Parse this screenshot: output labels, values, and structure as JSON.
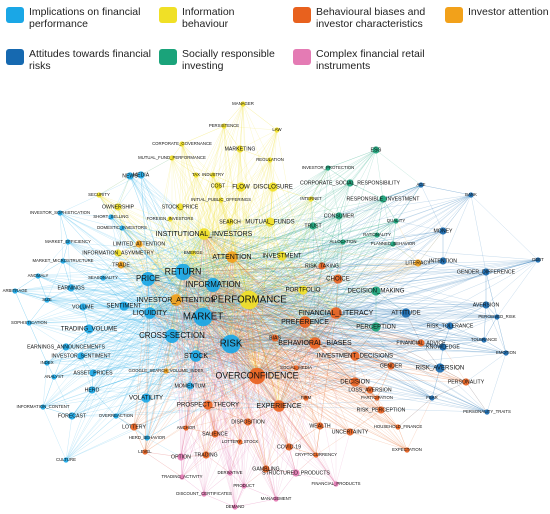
{
  "legend": [
    {
      "label": "Implications on financial performance",
      "color": "#1aa7e6"
    },
    {
      "label": "Information behaviour",
      "color": "#f0e026"
    },
    {
      "label": "Behavioural biases and investor characteristics",
      "color": "#e8611e"
    },
    {
      "label": "Investor attention",
      "color": "#f2a11a"
    },
    {
      "label": "Attitudes towards financial risks",
      "color": "#1669b0"
    },
    {
      "label": "Socially responsible investing",
      "color": "#1aa37a"
    },
    {
      "label": "Complex financial retail instruments",
      "color": "#e47bb4"
    }
  ],
  "nodes": [
    {
      "id": "MANAGER",
      "c": 1,
      "w": 1
    },
    {
      "id": "PERSISTENCE",
      "c": 1,
      "w": 1
    },
    {
      "id": "LAW",
      "c": 1,
      "w": 1
    },
    {
      "id": "CORPORATE_GOVERNANCE",
      "c": 1,
      "w": 1
    },
    {
      "id": "MARKETING",
      "c": 1,
      "w": 2
    },
    {
      "id": "ESG",
      "c": 5,
      "w": 2
    },
    {
      "id": "MUTUAL_FUND_PERFORMANCE",
      "c": 1,
      "w": 1
    },
    {
      "id": "REGULATION",
      "c": 1,
      "w": 1
    },
    {
      "id": "MEDIA",
      "c": 0,
      "w": 2
    },
    {
      "id": "TAX",
      "c": 1,
      "w": 1
    },
    {
      "id": "INDUSTRY",
      "c": 1,
      "w": 1
    },
    {
      "id": "INVESTOR_PROTECTION",
      "c": 5,
      "w": 1
    },
    {
      "id": "NEWS",
      "c": 0,
      "w": 2
    },
    {
      "id": "COST",
      "c": 1,
      "w": 2
    },
    {
      "id": "FLOW",
      "c": 1,
      "w": 3
    },
    {
      "id": "DISCLOSURE",
      "c": 1,
      "w": 3
    },
    {
      "id": "CORPORATE_SOCIAL_RESPONSIBILITY",
      "c": 5,
      "w": 2
    },
    {
      "id": "AGE",
      "c": 4,
      "w": 1
    },
    {
      "id": "BANK",
      "c": 4,
      "w": 1
    },
    {
      "id": "SECURITY",
      "c": 1,
      "w": 1
    },
    {
      "id": "INITIAL_PUBLIC_OFFERINGS",
      "c": 1,
      "w": 1
    },
    {
      "id": "INTERNET",
      "c": 1,
      "w": 1
    },
    {
      "id": "RESPONSIBLE_INVESTMENT",
      "c": 5,
      "w": 2
    },
    {
      "id": "OWNERSHIP",
      "c": 1,
      "w": 2
    },
    {
      "id": "STOCK_PRICE",
      "c": 1,
      "w": 2
    },
    {
      "id": "INVESTOR_SOPHISTICATION",
      "c": 0,
      "w": 1
    },
    {
      "id": "SHORT_SELLING",
      "c": 0,
      "w": 1
    },
    {
      "id": "FOREIGN_INVESTORS",
      "c": 1,
      "w": 1
    },
    {
      "id": "CONSUMER",
      "c": 5,
      "w": 2
    },
    {
      "id": "QUALITY",
      "c": 5,
      "w": 1
    },
    {
      "id": "DOMESTIC_INVESTORS",
      "c": 0,
      "w": 1
    },
    {
      "id": "SEARCH",
      "c": 1,
      "w": 2
    },
    {
      "id": "MUTUAL_FUNDS",
      "c": 1,
      "w": 3
    },
    {
      "id": "TRUST",
      "c": 5,
      "w": 2
    },
    {
      "id": "MONEY",
      "c": 4,
      "w": 2
    },
    {
      "id": "INSTITUTIONAL_INVESTORS",
      "c": 1,
      "w": 4
    },
    {
      "id": "RATIONALITY",
      "c": 5,
      "w": 1
    },
    {
      "id": "MARKET_EFFICIENCY",
      "c": 0,
      "w": 1
    },
    {
      "id": "ALLOCATION",
      "c": 5,
      "w": 1
    },
    {
      "id": "PLANNED_BEHAVIOR",
      "c": 5,
      "w": 1
    },
    {
      "id": "LIMITED_ATTENTION",
      "c": 3,
      "w": 2
    },
    {
      "id": "INFORMATION_ASYMMETRY",
      "c": 1,
      "w": 2
    },
    {
      "id": "EMERGE",
      "c": 1,
      "w": 1
    },
    {
      "id": "ATTENTION",
      "c": 3,
      "w": 4
    },
    {
      "id": "INVESTMENT",
      "c": 1,
      "w": 3
    },
    {
      "id": "INTENTION",
      "c": 4,
      "w": 2
    },
    {
      "id": "DEBT",
      "c": 4,
      "w": 1
    },
    {
      "id": "MARKET_MICROSTRUCTURE",
      "c": 0,
      "w": 1
    },
    {
      "id": "TRADE",
      "c": 3,
      "w": 2
    },
    {
      "id": "LITERACY",
      "c": 3,
      "w": 2
    },
    {
      "id": "GENDER_DIFFERENCE",
      "c": 4,
      "w": 2
    },
    {
      "id": "RETURN",
      "c": 0,
      "w": 6
    },
    {
      "id": "ANOMALY",
      "c": 0,
      "w": 1
    },
    {
      "id": "SEASONALITY",
      "c": 0,
      "w": 1
    },
    {
      "id": "RISK_TAKING",
      "c": 2,
      "w": 2
    },
    {
      "id": "CHOICE",
      "c": 2,
      "w": 3
    },
    {
      "id": "ARBITRAGE",
      "c": 0,
      "w": 1
    },
    {
      "id": "PRICE",
      "c": 0,
      "w": 5
    },
    {
      "id": "INFORMATION",
      "c": 0,
      "w": 5
    },
    {
      "id": "EARNINGS",
      "c": 0,
      "w": 2
    },
    {
      "id": "DECISION_MAKING",
      "c": 5,
      "w": 3
    },
    {
      "id": "SIZE",
      "c": 0,
      "w": 1
    },
    {
      "id": "AVERSION",
      "c": 4,
      "w": 2
    },
    {
      "id": "PERFORMANCE",
      "c": 1,
      "w": 7
    },
    {
      "id": "PORTFOLIO",
      "c": 1,
      "w": 3
    },
    {
      "id": "INVESTOR_ATTENTION",
      "c": 3,
      "w": 4
    },
    {
      "id": "VOLUME",
      "c": 0,
      "w": 2
    },
    {
      "id": "SENTIMENT",
      "c": 0,
      "w": 3
    },
    {
      "id": "LIQUIDITY",
      "c": 0,
      "w": 4
    },
    {
      "id": "PERCEIVED_RISK",
      "c": 4,
      "w": 1
    },
    {
      "id": "SOPHISTICATION",
      "c": 0,
      "w": 1
    },
    {
      "id": "FINANCIAL_LITERACY",
      "c": 2,
      "w": 4
    },
    {
      "id": "ATTITUDE",
      "c": 4,
      "w": 3
    },
    {
      "id": "MARKET",
      "c": 0,
      "w": 7
    },
    {
      "id": "PREFERENCE",
      "c": 2,
      "w": 4
    },
    {
      "id": "TRADING_VOLUME",
      "c": 0,
      "w": 3
    },
    {
      "id": "PERCEPTION",
      "c": 5,
      "w": 3
    },
    {
      "id": "RISK_TOLERANCE",
      "c": 4,
      "w": 2
    },
    {
      "id": "CROSS-SECTION",
      "c": 0,
      "w": 5
    },
    {
      "id": "BIAS",
      "c": 2,
      "w": 2
    },
    {
      "id": "EARNINGS_ANNOUNCEMENTS",
      "c": 0,
      "w": 2
    },
    {
      "id": "KNOWLEDGE",
      "c": 4,
      "w": 2
    },
    {
      "id": "FINANCIAL_ADVICE",
      "c": 2,
      "w": 2
    },
    {
      "id": "TOLERANCE",
      "c": 4,
      "w": 1
    },
    {
      "id": "EMOTION",
      "c": 4,
      "w": 1
    },
    {
      "id": "RISK",
      "c": 0,
      "w": 7
    },
    {
      "id": "BEHAVIORAL_BIASES",
      "c": 2,
      "w": 4
    },
    {
      "id": "INVESTOR_SENTIMENT",
      "c": 0,
      "w": 2
    },
    {
      "id": "INVESTMENT_DECISIONS",
      "c": 2,
      "w": 3
    },
    {
      "id": "RISK_AVERSION",
      "c": 4,
      "w": 3
    },
    {
      "id": "GENDER",
      "c": 2,
      "w": 2
    },
    {
      "id": "INDEX",
      "c": 0,
      "w": 1
    },
    {
      "id": "STOCK",
      "c": 0,
      "w": 4
    },
    {
      "id": "ASSET_PRICES",
      "c": 0,
      "w": 2
    },
    {
      "id": "SOCIAL_MEDIA",
      "c": 2,
      "w": 1
    },
    {
      "id": "PERSONALITY",
      "c": 2,
      "w": 2
    },
    {
      "id": "GOOGLE_SEARCH_VOLUME_INDEX",
      "c": 3,
      "w": 1
    },
    {
      "id": "OVERCONFIDENCE",
      "c": 2,
      "w": 6
    },
    {
      "id": "DECISION",
      "c": 2,
      "w": 3
    },
    {
      "id": "ANALYST",
      "c": 0,
      "w": 1
    },
    {
      "id": "LOSS_AVERSION",
      "c": 2,
      "w": 2
    },
    {
      "id": "MOMENTUM",
      "c": 0,
      "w": 2
    },
    {
      "id": "HERD",
      "c": 0,
      "w": 2
    },
    {
      "id": "EXPERIENCE",
      "c": 2,
      "w": 4
    },
    {
      "id": "FEAR",
      "c": 4,
      "w": 1
    },
    {
      "id": "INFORMATION_CONTENT",
      "c": 0,
      "w": 1
    },
    {
      "id": "PROSPECT_THEORY",
      "c": 2,
      "w": 3
    },
    {
      "id": "VOLATILITY",
      "c": 0,
      "w": 3
    },
    {
      "id": "PARTICIPATION",
      "c": 2,
      "w": 1
    },
    {
      "id": "RISK_PERCEPTION",
      "c": 2,
      "w": 2
    },
    {
      "id": "FIRM",
      "c": 2,
      "w": 1
    },
    {
      "id": "PERSONALITY_TRAITS",
      "c": 4,
      "w": 1
    },
    {
      "id": "FORECAST",
      "c": 0,
      "w": 2
    },
    {
      "id": "OVERREACTION",
      "c": 0,
      "w": 1
    },
    {
      "id": "DISPOSITION",
      "c": 2,
      "w": 2
    },
    {
      "id": "HOUSEHOLD_FINANCE",
      "c": 2,
      "w": 1
    },
    {
      "id": "LOTTERY",
      "c": 2,
      "w": 2
    },
    {
      "id": "WEALTH",
      "c": 2,
      "w": 2
    },
    {
      "id": "UNCERTAINTY",
      "c": 2,
      "w": 2
    },
    {
      "id": "HERD_BEHAVIOR",
      "c": 0,
      "w": 1
    },
    {
      "id": "ANCHOR",
      "c": 2,
      "w": 1
    },
    {
      "id": "SALIENCE",
      "c": 2,
      "w": 2
    },
    {
      "id": "EXPECTATION",
      "c": 2,
      "w": 1
    },
    {
      "id": "LOTTERY_STOCK",
      "c": 2,
      "w": 1
    },
    {
      "id": "COVID-19",
      "c": 2,
      "w": 2
    },
    {
      "id": "CULTURE",
      "c": 0,
      "w": 1
    },
    {
      "id": "LEVEL",
      "c": 2,
      "w": 1
    },
    {
      "id": "OPTION",
      "c": 6,
      "w": 2
    },
    {
      "id": "TRADING",
      "c": 2,
      "w": 2
    },
    {
      "id": "CRYPTOCURRENCY",
      "c": 2,
      "w": 1
    },
    {
      "id": "GAMBLING",
      "c": 2,
      "w": 2
    },
    {
      "id": "DERIVATIVE",
      "c": 6,
      "w": 1
    },
    {
      "id": "STRUCTURED_PRODUCTS",
      "c": 6,
      "w": 2
    },
    {
      "id": "TRADING_ACTIVITY",
      "c": 6,
      "w": 1
    },
    {
      "id": "PRODUCT",
      "c": 6,
      "w": 1
    },
    {
      "id": "FINANCIAL_PRODUCTS",
      "c": 6,
      "w": 1
    },
    {
      "id": "DISCOUNT_CERTIFICATES",
      "c": 6,
      "w": 1
    },
    {
      "id": "MANAGEMENT",
      "c": 6,
      "w": 1
    },
    {
      "id": "DEMAND",
      "c": 6,
      "w": 1
    }
  ]
}
